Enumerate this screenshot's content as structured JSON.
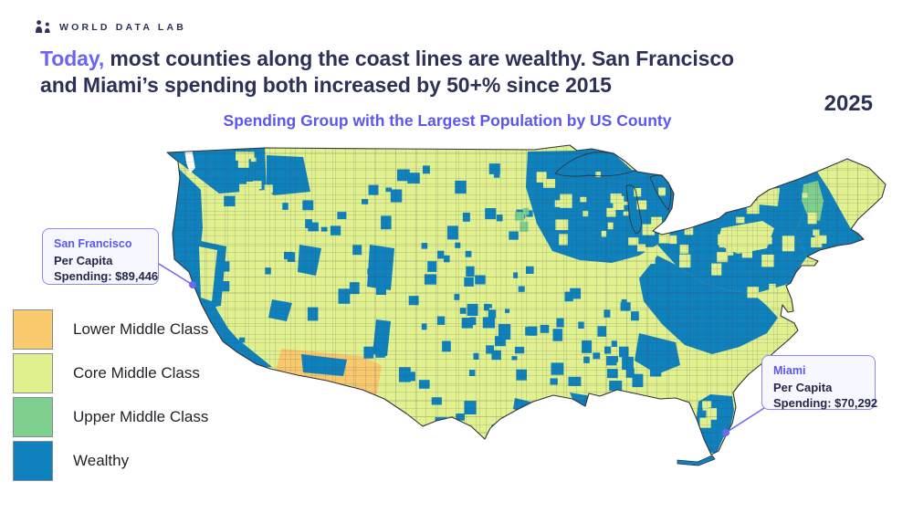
{
  "brand": {
    "name": "WORLD DATA LAB"
  },
  "headline": {
    "highlight": "Today,",
    "line1_rest": "most counties along the coast lines are wealthy. San Francisco",
    "line2": "and Miami’s spending both increased by 50+% since 2015"
  },
  "year": "2025",
  "map_title": "Spending Group with the Largest Population by US County",
  "legend": {
    "items": [
      {
        "label": "Lower Middle Class",
        "color": "#f9c96d"
      },
      {
        "label": "Core Middle Class",
        "color": "#e1f18f"
      },
      {
        "label": "Upper Middle Class",
        "color": "#7fcf8f"
      },
      {
        "label": "Wealthy",
        "color": "#0f81bd"
      }
    ]
  },
  "callouts": {
    "san_francisco": {
      "city": "San Francisco",
      "line1": "Per Capita",
      "line2": "Spending: $89,446"
    },
    "miami": {
      "city": "Miami",
      "line1": "Per Capita",
      "line2": "Spending: $70,292"
    }
  },
  "colors": {
    "accent": "#6f68f3",
    "accent2": "#6b64f7",
    "navy": "#2d3157",
    "title": "#5b57ee",
    "lower": "#f9c96d",
    "core": "#e1f18f",
    "upper": "#7fcf8f",
    "wealthy": "#0f81bd",
    "outline": "#2f343c",
    "callout_border": "#8d88f8",
    "callout_bg": "#f7f7ff"
  },
  "chart_data": {
    "type": "heatmap",
    "subtype": "us_county_choropleth",
    "title": "Spending Group with the Largest Population by US County",
    "year": 2025,
    "categories": [
      "Lower Middle Class",
      "Core Middle Class",
      "Upper Middle Class",
      "Wealthy"
    ],
    "legend_position": "bottom-left",
    "annotations": [
      {
        "place": "San Francisco",
        "metric": "Per Capita Spending",
        "value_usd": 89446,
        "display": "$89,446"
      },
      {
        "place": "Miami",
        "metric": "Per Capita Spending",
        "value_usd": 70292,
        "display": "$70,292"
      }
    ],
    "pattern_summary": {
      "wealthy": "Pacific coast and Washington, Great Lakes / Upper Midwest, Northeast corridor, Appalachian fringe, Atlanta metro, Florida peninsula, scattered plains counties",
      "core_middle": "interior base: Great Plains, Texas, Deep South, Maine, Nevada and California Central Valley",
      "upper_middle": "Vermont / New Hampshire cluster plus a few upper-Midwest counties",
      "lower_middle": "southern Arizona cluster"
    }
  }
}
